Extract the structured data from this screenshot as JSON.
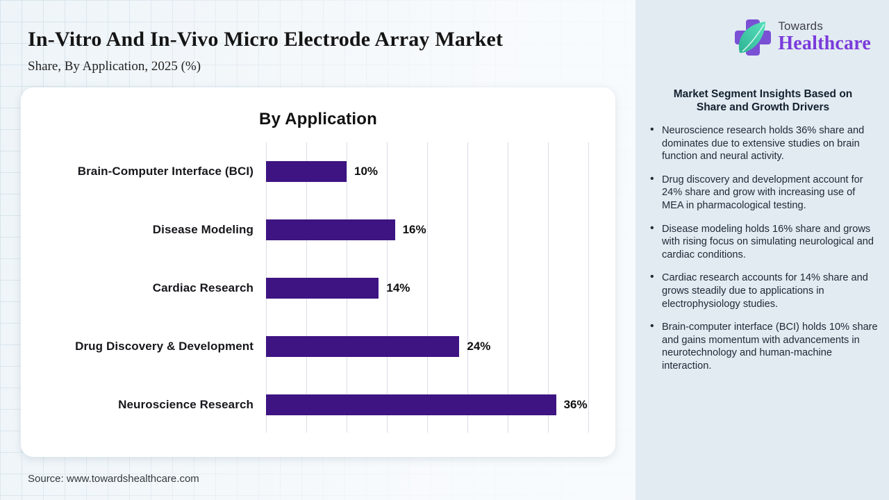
{
  "header": {
    "title": "In-Vitro And In-Vivo Micro Electrode Array Market",
    "subtitle": "Share, By Application, 2025 (%)"
  },
  "logo": {
    "top_text": "Towards",
    "bottom_text": "Healthcare"
  },
  "chart_data": {
    "type": "bar",
    "orientation": "horizontal",
    "title": "By Application",
    "categories": [
      "Brain-Computer Interface (BCI)",
      "Disease Modeling",
      "Cardiac Research",
      "Drug Discovery & Development",
      "Neuroscience Research"
    ],
    "values": [
      10,
      16,
      14,
      24,
      36
    ],
    "value_labels": [
      "10%",
      "16%",
      "14%",
      "24%",
      "36%"
    ],
    "xlabel": "",
    "ylabel": "",
    "xlim": [
      0,
      40
    ],
    "gridline_step": 5,
    "grid": "vertical-only",
    "legend": "none",
    "bar_color": "#3d1482"
  },
  "insights": {
    "heading": "Market Segment Insights Based on Share and Growth Drivers",
    "bullets": [
      "Neuroscience research holds 36% share and dominates due to extensive studies on brain function and neural activity.",
      "Drug discovery and development account for 24% share and grow with increasing use of MEA in pharmacological testing.",
      "Disease modeling holds 16% share and grows with rising focus on simulating neurological and cardiac conditions.",
      "Cardiac research accounts for 14% share and grows steadily due to applications in electrophysiology studies.",
      "Brain-computer interface (BCI) holds 10% share and gains momentum with advancements in neurotechnology and human-machine interaction."
    ]
  },
  "footer": {
    "source": "Source: www.towardshealthcare.com"
  },
  "colors": {
    "bar_purple": "#3d1482",
    "brand_purple": "#7a3bdb",
    "leaf_teal": "#3ecfac",
    "panel_bg": "#e2ebf2",
    "page_bg": "#eef4f8",
    "card_bg": "#ffffff"
  }
}
